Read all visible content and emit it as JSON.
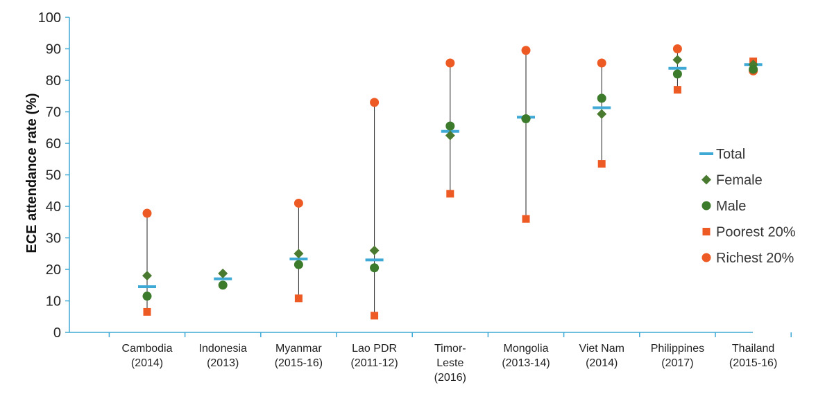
{
  "colors": {
    "total": "#3fa9d6",
    "female": "#4a7a2f",
    "male": "#3c7a2c",
    "poorest": "#ee5a24",
    "richest": "#ee5a24",
    "range": "#222222",
    "axis": "#3fa9d6"
  },
  "chart_data": {
    "type": "scatter",
    "title": "",
    "xlabel": "",
    "ylabel": "ECE attendance rate (%)",
    "ylim": [
      0,
      100
    ],
    "yticks": [
      0,
      10,
      20,
      30,
      40,
      50,
      60,
      70,
      80,
      90,
      100
    ],
    "categories": [
      [
        "Cambodia",
        "(2014)"
      ],
      [
        "Indonesia",
        "(2013)"
      ],
      [
        "Myanmar",
        "(2015-16)"
      ],
      [
        "Lao PDR",
        "(2011-12)"
      ],
      [
        "Timor-",
        "Leste",
        "(2016)"
      ],
      [
        "Mongolia",
        "(2013-14)"
      ],
      [
        "Viet Nam",
        "(2014)"
      ],
      [
        "Philippines",
        "(2017)"
      ],
      [
        "Thailand",
        "(2015-16)"
      ]
    ],
    "series": [
      {
        "name": "Total",
        "values": [
          14.5,
          17,
          23.3,
          23,
          63.8,
          68.3,
          71.3,
          83.8,
          85
        ]
      },
      {
        "name": "Female",
        "values": [
          18,
          18.7,
          25,
          26,
          62.5,
          67.8,
          69.3,
          86.5,
          85
        ]
      },
      {
        "name": "Male",
        "values": [
          11.5,
          15,
          21.5,
          20.5,
          65.5,
          67.8,
          74.3,
          82,
          83.5
        ]
      },
      {
        "name": "Poorest 20%",
        "values": [
          6.5,
          null,
          10.8,
          5.3,
          44,
          36,
          53.5,
          77,
          86
        ]
      },
      {
        "name": "Richest 20%",
        "values": [
          37.8,
          null,
          41,
          73,
          85.5,
          89.5,
          85.5,
          90,
          83
        ]
      }
    ],
    "legend_position": "right",
    "grid": false
  }
}
